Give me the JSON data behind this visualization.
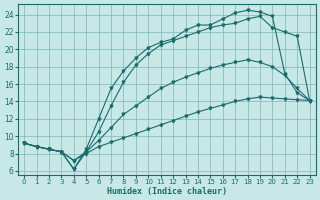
{
  "xlabel": "Humidex (Indice chaleur)",
  "bg_color": "#c8e8e8",
  "grid_color": "#7ab8b8",
  "line_color": "#1a6b6b",
  "xlim": [
    -0.5,
    23.5
  ],
  "ylim": [
    5.5,
    25.2
  ],
  "xticks": [
    0,
    1,
    2,
    3,
    4,
    5,
    6,
    7,
    8,
    9,
    10,
    11,
    12,
    13,
    14,
    15,
    16,
    17,
    18,
    19,
    20,
    21,
    22,
    23
  ],
  "yticks": [
    6,
    8,
    10,
    12,
    14,
    16,
    18,
    20,
    22,
    24
  ],
  "line1_x": [
    0,
    1,
    2,
    3,
    4,
    5,
    6,
    7,
    8,
    9,
    10,
    11,
    12,
    13,
    14,
    15,
    16,
    17,
    18,
    19,
    20,
    21,
    22,
    23
  ],
  "line1_y": [
    9.2,
    8.8,
    8.5,
    8.2,
    7.2,
    8.0,
    8.8,
    9.3,
    9.8,
    10.3,
    10.8,
    11.3,
    11.8,
    12.3,
    12.8,
    13.2,
    13.6,
    14.0,
    14.3,
    14.5,
    14.4,
    14.3,
    14.2,
    14.1
  ],
  "line2_x": [
    0,
    1,
    2,
    3,
    4,
    5,
    6,
    7,
    8,
    9,
    10,
    11,
    12,
    13,
    14,
    15,
    16,
    17,
    18,
    19,
    20,
    21,
    22,
    23
  ],
  "line2_y": [
    9.2,
    8.8,
    8.5,
    8.2,
    7.2,
    8.2,
    9.5,
    11.0,
    12.5,
    13.5,
    14.5,
    15.5,
    16.2,
    16.8,
    17.3,
    17.8,
    18.2,
    18.5,
    18.8,
    18.5,
    18.0,
    17.0,
    15.5,
    14.1
  ],
  "line3_x": [
    0,
    1,
    2,
    3,
    4,
    5,
    6,
    7,
    8,
    9,
    10,
    11,
    12,
    13,
    14,
    15,
    16,
    17,
    18,
    19,
    20,
    21,
    22,
    23
  ],
  "line3_y": [
    9.2,
    8.8,
    8.5,
    8.2,
    6.2,
    8.2,
    10.5,
    13.5,
    16.2,
    18.2,
    19.5,
    20.5,
    21.0,
    21.5,
    22.0,
    22.5,
    22.8,
    23.0,
    23.5,
    23.8,
    22.5,
    22.0,
    21.5,
    14.1
  ],
  "line4_x": [
    0,
    1,
    2,
    3,
    4,
    5,
    6,
    7,
    8,
    9,
    10,
    11,
    12,
    13,
    14,
    15,
    16,
    17,
    18,
    19,
    20,
    21,
    22,
    23
  ],
  "line4_y": [
    9.2,
    8.8,
    8.5,
    8.2,
    6.2,
    8.5,
    12.0,
    15.5,
    17.5,
    19.0,
    20.2,
    20.8,
    21.2,
    22.2,
    22.8,
    22.8,
    23.5,
    24.2,
    24.5,
    24.3,
    23.8,
    17.2,
    15.0,
    14.1
  ]
}
